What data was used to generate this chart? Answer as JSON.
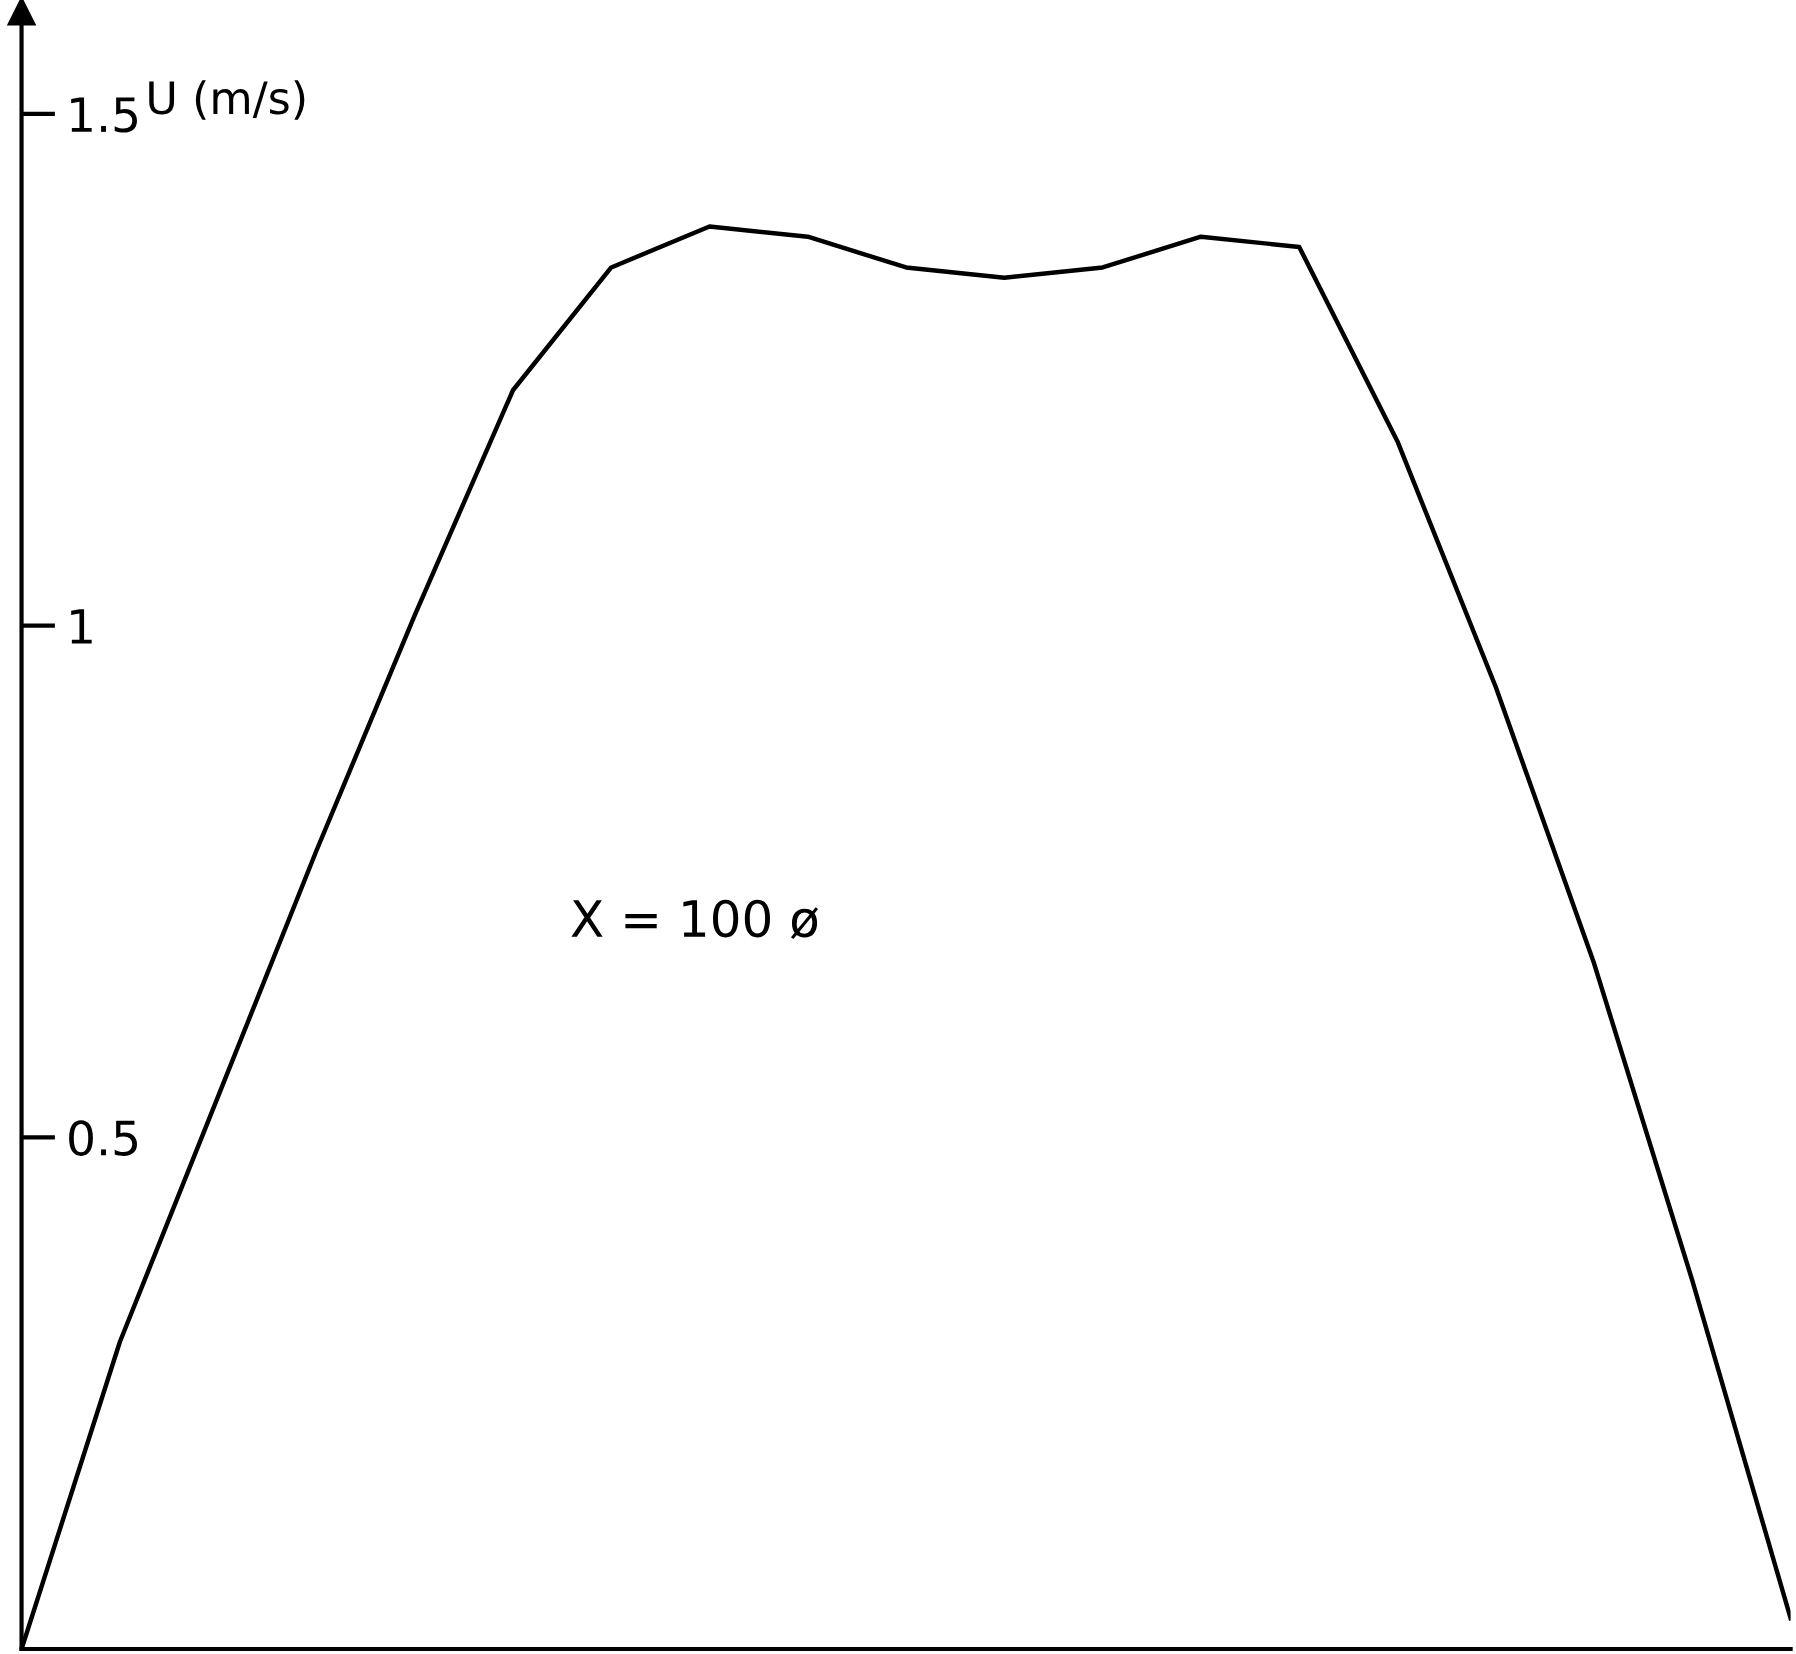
{
  "chart_data": {
    "type": "line",
    "ylabel": "U (m/s)",
    "categories": [
      null,
      null,
      null,
      null,
      null,
      null,
      null,
      null,
      null,
      null,
      null,
      null,
      null,
      null,
      null,
      null,
      null,
      null,
      null
    ],
    "series": [
      {
        "color": "#000000",
        "values": [
          0,
          0.3,
          0.54,
          0.78,
          1.01,
          1.23,
          1.35,
          1.39,
          1.38,
          1.35,
          1.34,
          1.35,
          1.38,
          1.37,
          1.18,
          0.94,
          0.67,
          0.36,
          0.03
        ]
      }
    ],
    "ylim": [
      0,
      1.6
    ],
    "yticks": [
      0.5,
      1,
      1.5
    ],
    "tick_labels": "y",
    "grid": false,
    "legend": false,
    "marker": "none",
    "line_style": "solid",
    "annotations": [
      "X = 100 ø"
    ]
  }
}
